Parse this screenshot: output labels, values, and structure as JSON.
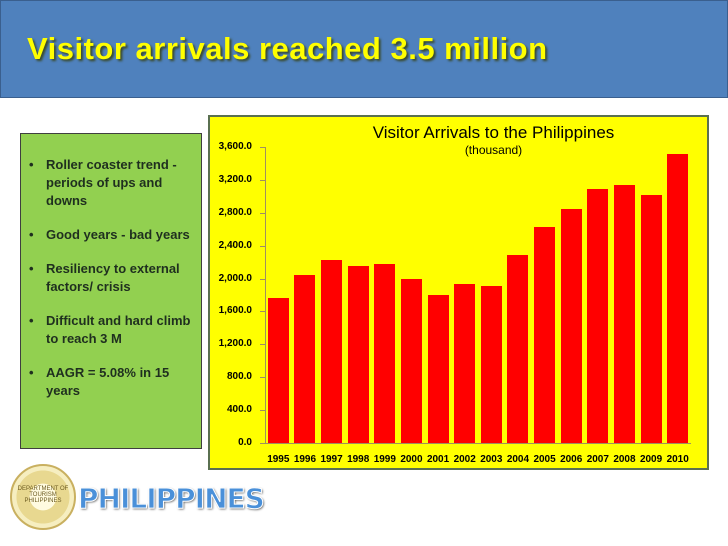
{
  "header": {
    "title": "Visitor arrivals reached 3.5 million"
  },
  "bullets": [
    "Roller coaster trend - periods of ups and downs",
    "Good years - bad years",
    "Resiliency to external factors/ crisis",
    "Difficult and hard climb to reach 3 M",
    "AAGR = 5.08% in 15 years"
  ],
  "bullet_glyph": "•",
  "footer": {
    "seal_text": "DEPARTMENT OF TOURISM PHILIPPINES",
    "banner_text": "PHILIPPINES"
  },
  "colors": {
    "header_bg": "#4f81bd",
    "title_text": "#ffff00",
    "bullet_bg": "#92d050",
    "chart_bg": "#ffff00",
    "bar": "#ff0000"
  },
  "chart_data": {
    "type": "bar",
    "title": "Visitor Arrivals to the Philippines",
    "subtitle": "(thousand)",
    "xlabel": "",
    "ylabel": "",
    "categories": [
      "1995",
      "1996",
      "1997",
      "1998",
      "1999",
      "2000",
      "2001",
      "2002",
      "2003",
      "2004",
      "2005",
      "2006",
      "2007",
      "2008",
      "2009",
      "2010"
    ],
    "values": [
      1760,
      2049,
      2223,
      2149,
      2171,
      1992,
      1797,
      1933,
      1907,
      2291,
      2623,
      2843,
      3092,
      3139,
      3017,
      3520
    ],
    "ylim": [
      0,
      3600
    ],
    "yticks": [
      "0.0",
      "400.0",
      "800.0",
      "1,200.0",
      "1,600.0",
      "2,000.0",
      "2,400.0",
      "2,800.0",
      "3,200.0",
      "3,600.0"
    ],
    "grid": false,
    "legend": null
  }
}
